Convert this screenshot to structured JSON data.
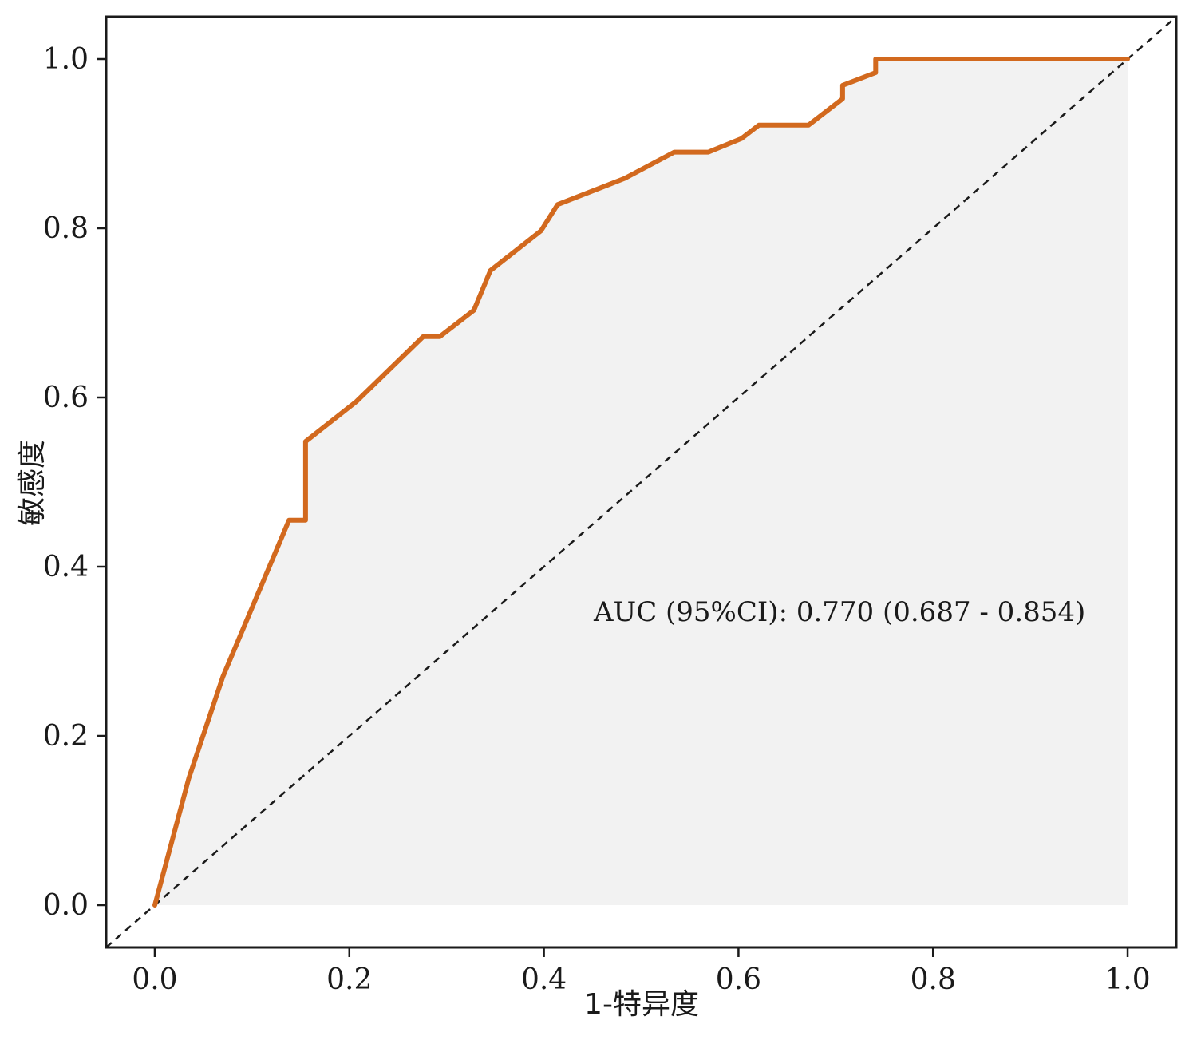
{
  "chart_data": {
    "type": "line",
    "title": "",
    "xlabel": "1-特异度",
    "ylabel": "敏感度",
    "xlim": [
      -0.05,
      1.05
    ],
    "ylim": [
      -0.05,
      1.05
    ],
    "xticks": [
      "0.0",
      "0.2",
      "0.4",
      "0.6",
      "0.8",
      "1.0"
    ],
    "yticks": [
      "0.0",
      "0.2",
      "0.4",
      "0.6",
      "0.8",
      "1.0"
    ],
    "grid": false,
    "legend": "none",
    "annotation": "AUC (95%CI): 0.770 (0.687 - 0.854)",
    "series": [
      {
        "color": "#d2691e",
        "fill": "#f2f2f2",
        "x": [
          0.0,
          0.035,
          0.07,
          0.138,
          0.155,
          0.155,
          0.207,
          0.276,
          0.293,
          0.328,
          0.345,
          0.397,
          0.414,
          0.483,
          0.534,
          0.569,
          0.603,
          0.621,
          0.672,
          0.707,
          0.707,
          0.741,
          0.741,
          1.0
        ],
        "y": [
          0.0,
          0.15,
          0.27,
          0.455,
          0.455,
          0.548,
          0.595,
          0.672,
          0.672,
          0.703,
          0.75,
          0.797,
          0.828,
          0.859,
          0.89,
          0.89,
          0.906,
          0.922,
          0.922,
          0.953,
          0.969,
          0.984,
          1.0,
          1.0
        ]
      }
    ],
    "reference_line": {
      "x": [
        -0.05,
        1.05
      ],
      "y": [
        -0.05,
        1.05
      ],
      "style": "dashed",
      "color": "#1a1a1a"
    }
  }
}
